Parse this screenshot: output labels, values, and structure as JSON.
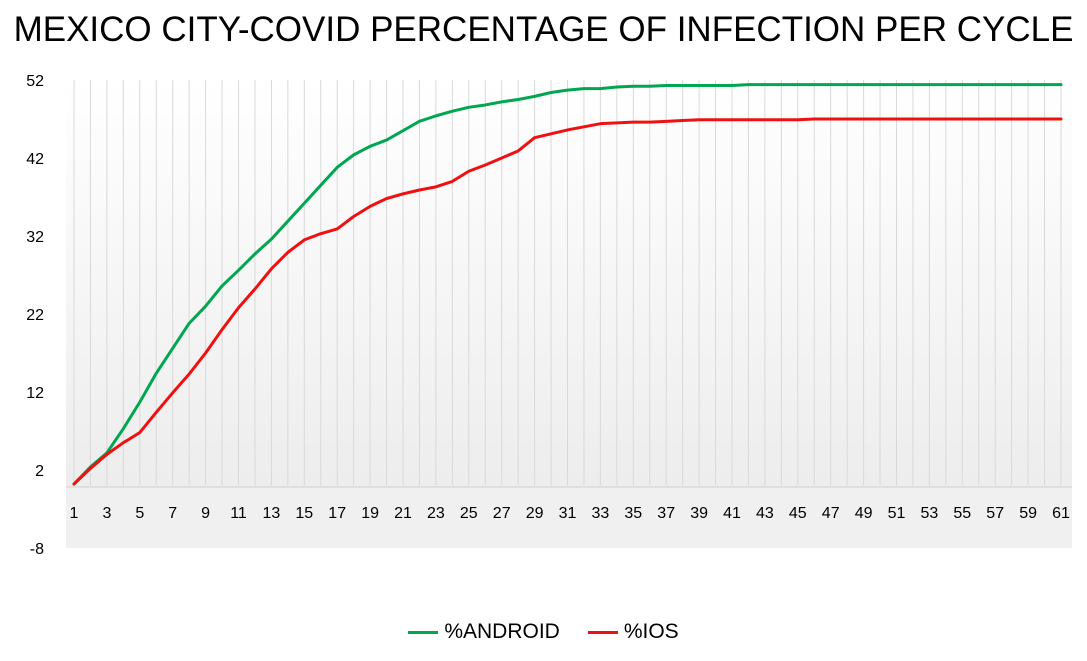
{
  "chart_data": {
    "type": "line",
    "title": "MEXICO CITY-COVID PERCENTAGE OF INFECTION PER CYCLE",
    "xlabel": "",
    "ylabel": "",
    "ylim": [
      -8,
      52
    ],
    "yticks": [
      "52",
      "42",
      "32",
      "22",
      "12",
      "2",
      "-8"
    ],
    "x": [
      1,
      2,
      3,
      4,
      5,
      6,
      7,
      8,
      9,
      10,
      11,
      12,
      13,
      14,
      15,
      16,
      17,
      18,
      19,
      20,
      21,
      22,
      23,
      24,
      25,
      26,
      27,
      28,
      29,
      30,
      31,
      32,
      33,
      34,
      35,
      36,
      37,
      38,
      39,
      40,
      41,
      42,
      43,
      44,
      45,
      46,
      47,
      48,
      49,
      50,
      51,
      52,
      53,
      54,
      55,
      56,
      57,
      58,
      59,
      60,
      61
    ],
    "xtick_labels": [
      "1",
      "3",
      "5",
      "7",
      "9",
      "11",
      "13",
      "15",
      "17",
      "19",
      "21",
      "23",
      "25",
      "27",
      "29",
      "31",
      "33",
      "35",
      "37",
      "39",
      "41",
      "43",
      "45",
      "47",
      "49",
      "51",
      "53",
      "55",
      "57",
      "59",
      "61"
    ],
    "grid": "vertical",
    "legend_position": "bottom",
    "series": [
      {
        "name": "%ANDROID",
        "color": "#00a650",
        "values": [
          0.2,
          2.4,
          4.2,
          7.3,
          10.7,
          14.4,
          17.6,
          20.8,
          23.0,
          25.6,
          27.6,
          29.7,
          31.6,
          33.9,
          36.2,
          38.5,
          40.8,
          42.4,
          43.5,
          44.3,
          45.5,
          46.7,
          47.4,
          48.0,
          48.5,
          48.8,
          49.2,
          49.5,
          49.9,
          50.4,
          50.7,
          50.9,
          50.9,
          51.1,
          51.2,
          51.2,
          51.3,
          51.3,
          51.3,
          51.3,
          51.3,
          51.4,
          51.4,
          51.4,
          51.4,
          51.4,
          51.4,
          51.4,
          51.4,
          51.4,
          51.4,
          51.4,
          51.4,
          51.4,
          51.4,
          51.4,
          51.4,
          51.4,
          51.4,
          51.4,
          51.4
        ]
      },
      {
        "name": "%IOS",
        "color": "#ee1111",
        "values": [
          0.2,
          2.2,
          4.0,
          5.5,
          6.8,
          9.4,
          11.9,
          14.3,
          17.0,
          20.0,
          22.8,
          25.2,
          27.8,
          29.9,
          31.5,
          32.3,
          32.9,
          34.5,
          35.8,
          36.8,
          37.4,
          37.9,
          38.3,
          39.0,
          40.3,
          41.1,
          42.0,
          42.9,
          44.6,
          45.1,
          45.6,
          46.0,
          46.4,
          46.5,
          46.6,
          46.6,
          46.7,
          46.8,
          46.9,
          46.9,
          46.9,
          46.9,
          46.9,
          46.9,
          46.9,
          47.0,
          47.0,
          47.0,
          47.0,
          47.0,
          47.0,
          47.0,
          47.0,
          47.0,
          47.0,
          47.0,
          47.0,
          47.0,
          47.0,
          47.0,
          47.0
        ]
      }
    ]
  }
}
